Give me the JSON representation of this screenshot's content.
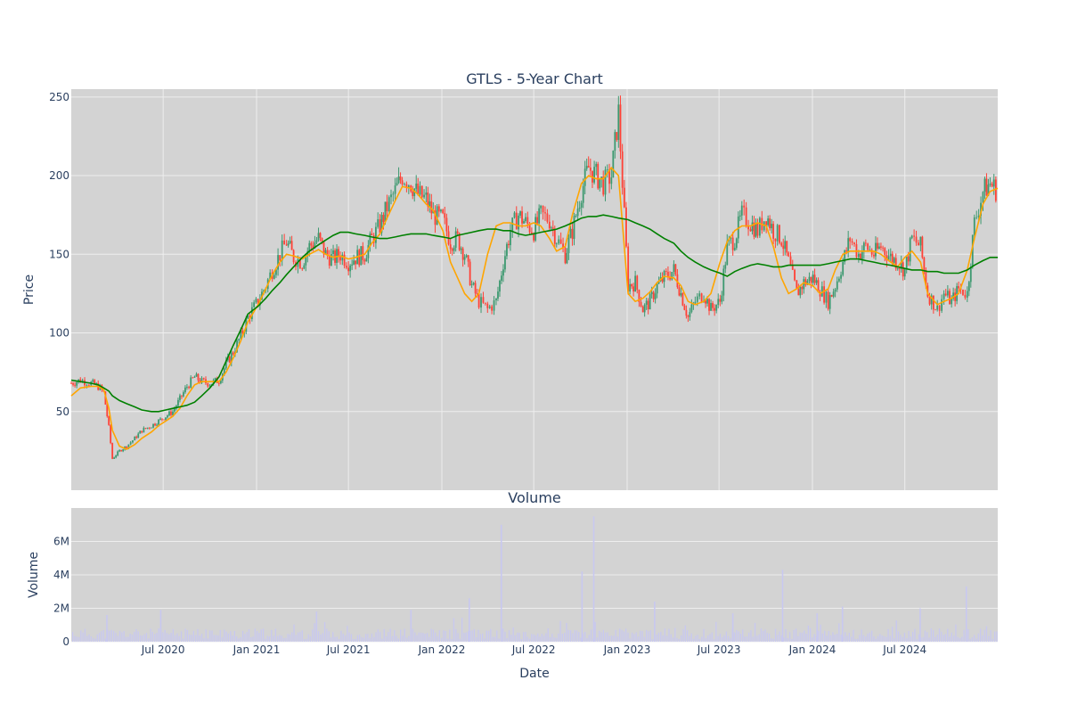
{
  "chart_data": [
    {
      "type": "candlestick",
      "title": "GTLS - 5-Year Chart",
      "ylabel": "Price",
      "ylim": [
        0,
        255
      ],
      "y_ticks": [
        50,
        100,
        150,
        200,
        250
      ],
      "x_range": [
        "2020-01-02",
        "2024-12-31"
      ],
      "grid": true,
      "colors": {
        "background": "#d3d3d3",
        "grid": "#eeeeee",
        "increasing": "#3d9970",
        "decreasing": "#ff4136",
        "ma_short": "#ffa500",
        "ma_long": "#008000"
      },
      "close_series": {
        "x": [
          "2020-01-02",
          "2020-01-20",
          "2020-02-10",
          "2020-02-24",
          "2020-03-06",
          "2020-03-16",
          "2020-03-23",
          "2020-04-06",
          "2020-04-20",
          "2020-05-06",
          "2020-05-20",
          "2020-06-08",
          "2020-06-22",
          "2020-07-06",
          "2020-07-20",
          "2020-08-03",
          "2020-08-17",
          "2020-09-01",
          "2020-09-15",
          "2020-10-01",
          "2020-10-19",
          "2020-11-02",
          "2020-11-16",
          "2020-12-01",
          "2020-12-15",
          "2021-01-04",
          "2021-01-19",
          "2021-02-01",
          "2021-02-16",
          "2021-03-01",
          "2021-03-15",
          "2021-04-01",
          "2021-04-15",
          "2021-05-03",
          "2021-05-17",
          "2021-06-01",
          "2021-06-15",
          "2021-07-01",
          "2021-07-15",
          "2021-08-02",
          "2021-08-16",
          "2021-09-01",
          "2021-09-15",
          "2021-10-01",
          "2021-10-15",
          "2021-11-01",
          "2021-11-15",
          "2021-12-01",
          "2021-12-15",
          "2022-01-03",
          "2022-01-18",
          "2022-02-01",
          "2022-02-15",
          "2022-03-01",
          "2022-03-15",
          "2022-04-01",
          "2022-04-18",
          "2022-05-02",
          "2022-05-16",
          "2022-06-01",
          "2022-06-15",
          "2022-07-01",
          "2022-07-15",
          "2022-08-01",
          "2022-08-15",
          "2022-09-01",
          "2022-09-15",
          "2022-10-03",
          "2022-10-17",
          "2022-11-01",
          "2022-11-15",
          "2022-12-01",
          "2022-12-15",
          "2023-01-03",
          "2023-01-17",
          "2023-02-01",
          "2023-02-15",
          "2023-03-01",
          "2023-03-15",
          "2023-04-03",
          "2023-04-17",
          "2023-05-01",
          "2023-05-15",
          "2023-06-01",
          "2023-06-15",
          "2023-07-03",
          "2023-07-17",
          "2023-08-01",
          "2023-08-15",
          "2023-09-01",
          "2023-09-15",
          "2023-10-02",
          "2023-10-16",
          "2023-11-01",
          "2023-11-15",
          "2023-12-01",
          "2023-12-15",
          "2024-01-02",
          "2024-01-16",
          "2024-02-01",
          "2024-02-15",
          "2024-03-01",
          "2024-03-15",
          "2024-04-01",
          "2024-04-15",
          "2024-05-01",
          "2024-05-15",
          "2024-06-03",
          "2024-06-17",
          "2024-07-01",
          "2024-07-15",
          "2024-08-01",
          "2024-08-15",
          "2024-09-03",
          "2024-09-16",
          "2024-10-01",
          "2024-10-15",
          "2024-11-01",
          "2024-11-15",
          "2024-12-02",
          "2024-12-16",
          "2024-12-31"
        ],
        "close": [
          68,
          70,
          68,
          66,
          62,
          40,
          20,
          25,
          28,
          33,
          38,
          41,
          44,
          47,
          50,
          58,
          66,
          72,
          69,
          68,
          70,
          80,
          88,
          98,
          110,
          120,
          130,
          140,
          150,
          158,
          148,
          145,
          155,
          160,
          150,
          147,
          150,
          145,
          148,
          150,
          160,
          168,
          180,
          190,
          200,
          195,
          188,
          185,
          175,
          172,
          158,
          160,
          150,
          130,
          120,
          115,
          120,
          145,
          165,
          175,
          170,
          165,
          175,
          172,
          160,
          150,
          165,
          190,
          205,
          200,
          195,
          200,
          240,
          130,
          132,
          115,
          120,
          130,
          135,
          140,
          125,
          110,
          120,
          125,
          115,
          120,
          155,
          160,
          175,
          170,
          165,
          175,
          165,
          160,
          145,
          125,
          132,
          135,
          128,
          120,
          130,
          145,
          160,
          150,
          155,
          150,
          155,
          148,
          145,
          140,
          160,
          155,
          125,
          115,
          125,
          120,
          128,
          125,
          170,
          190,
          195,
          190
        ],
        "ma_short": [
          60,
          65,
          66,
          66,
          64,
          52,
          38,
          28,
          26,
          29,
          33,
          37,
          41,
          44,
          47,
          52,
          60,
          67,
          69,
          69,
          69,
          75,
          84,
          95,
          107,
          118,
          128,
          137,
          145,
          150,
          149,
          147,
          150,
          153,
          150,
          148,
          149,
          147,
          148,
          150,
          157,
          163,
          173,
          184,
          193,
          192,
          188,
          182,
          178,
          165,
          145,
          135,
          125,
          120,
          125,
          150,
          168,
          170,
          170,
          168,
          168,
          170,
          168,
          160,
          152,
          155,
          175,
          195,
          200,
          198,
          198,
          205,
          200,
          125,
          120,
          122,
          126,
          132,
          136,
          135,
          130,
          120,
          118,
          120,
          125,
          145,
          158,
          165,
          168,
          168,
          170,
          168,
          155,
          135,
          125,
          128,
          132,
          130,
          125,
          128,
          140,
          150,
          152,
          152,
          152,
          152,
          150,
          145,
          142,
          148,
          152,
          145,
          125,
          118,
          120,
          122,
          125,
          140,
          160,
          182,
          190,
          192
        ],
        "ma_long": [
          70,
          69,
          68,
          67,
          65,
          63,
          60,
          57,
          55,
          53,
          51,
          50,
          50,
          51,
          52,
          53,
          54,
          56,
          60,
          65,
          72,
          82,
          92,
          102,
          112,
          117,
          122,
          127,
          132,
          137,
          142,
          148,
          152,
          156,
          159,
          162,
          164,
          164,
          163,
          162,
          161,
          160,
          160,
          161,
          162,
          163,
          163,
          163,
          162,
          161,
          160,
          162,
          163,
          164,
          165,
          166,
          166,
          165,
          165,
          163,
          162,
          163,
          164,
          165,
          166,
          168,
          170,
          173,
          174,
          174,
          175,
          174,
          173,
          172,
          170,
          168,
          166,
          163,
          160,
          157,
          152,
          148,
          145,
          142,
          140,
          138,
          136,
          139,
          141,
          143,
          144,
          143,
          142,
          142,
          143,
          143,
          143,
          143,
          143,
          144,
          145,
          146,
          147,
          147,
          146,
          145,
          144,
          143,
          142,
          141,
          140,
          140,
          139,
          139,
          138,
          138,
          138,
          140,
          143,
          146,
          148,
          148
        ]
      }
    },
    {
      "type": "bar",
      "title": "Volume",
      "xlabel": "Date",
      "ylabel": "Volume",
      "ylim": [
        0,
        8000000
      ],
      "y_ticks": [
        {
          "value": 0,
          "label": "0"
        },
        {
          "value": 2000000,
          "label": "2M"
        },
        {
          "value": 4000000,
          "label": "4M"
        },
        {
          "value": 6000000,
          "label": "6M"
        }
      ],
      "x_ticks": [
        {
          "date": "2020-07-01",
          "label": "Jul 2020"
        },
        {
          "date": "2021-01-01",
          "label": "Jan 2021"
        },
        {
          "date": "2021-07-01",
          "label": "Jul 2021"
        },
        {
          "date": "2022-01-01",
          "label": "Jan 2022"
        },
        {
          "date": "2022-07-01",
          "label": "Jul 2022"
        },
        {
          "date": "2023-01-01",
          "label": "Jan 2023"
        },
        {
          "date": "2023-07-01",
          "label": "Jul 2023"
        },
        {
          "date": "2024-01-01",
          "label": "Jan 2024"
        },
        {
          "date": "2024-07-01",
          "label": "Jul 2024"
        }
      ],
      "colors": {
        "bar": "#c8c8f0"
      },
      "spikes": [
        {
          "date": "2020-03-12",
          "value": 1600000
        },
        {
          "date": "2020-06-26",
          "value": 1900000
        },
        {
          "date": "2021-04-29",
          "value": 1800000
        },
        {
          "date": "2021-11-01",
          "value": 1900000
        },
        {
          "date": "2022-02-24",
          "value": 2600000
        },
        {
          "date": "2022-04-28",
          "value": 7000000
        },
        {
          "date": "2022-10-04",
          "value": 4200000
        },
        {
          "date": "2022-10-27",
          "value": 7500000
        },
        {
          "date": "2023-02-24",
          "value": 2400000
        },
        {
          "date": "2023-07-28",
          "value": 1700000
        },
        {
          "date": "2023-11-03",
          "value": 4300000
        },
        {
          "date": "2024-01-10",
          "value": 1700000
        },
        {
          "date": "2024-02-29",
          "value": 2100000
        },
        {
          "date": "2024-07-31",
          "value": 2000000
        },
        {
          "date": "2024-10-30",
          "value": 3300000
        }
      ]
    }
  ]
}
